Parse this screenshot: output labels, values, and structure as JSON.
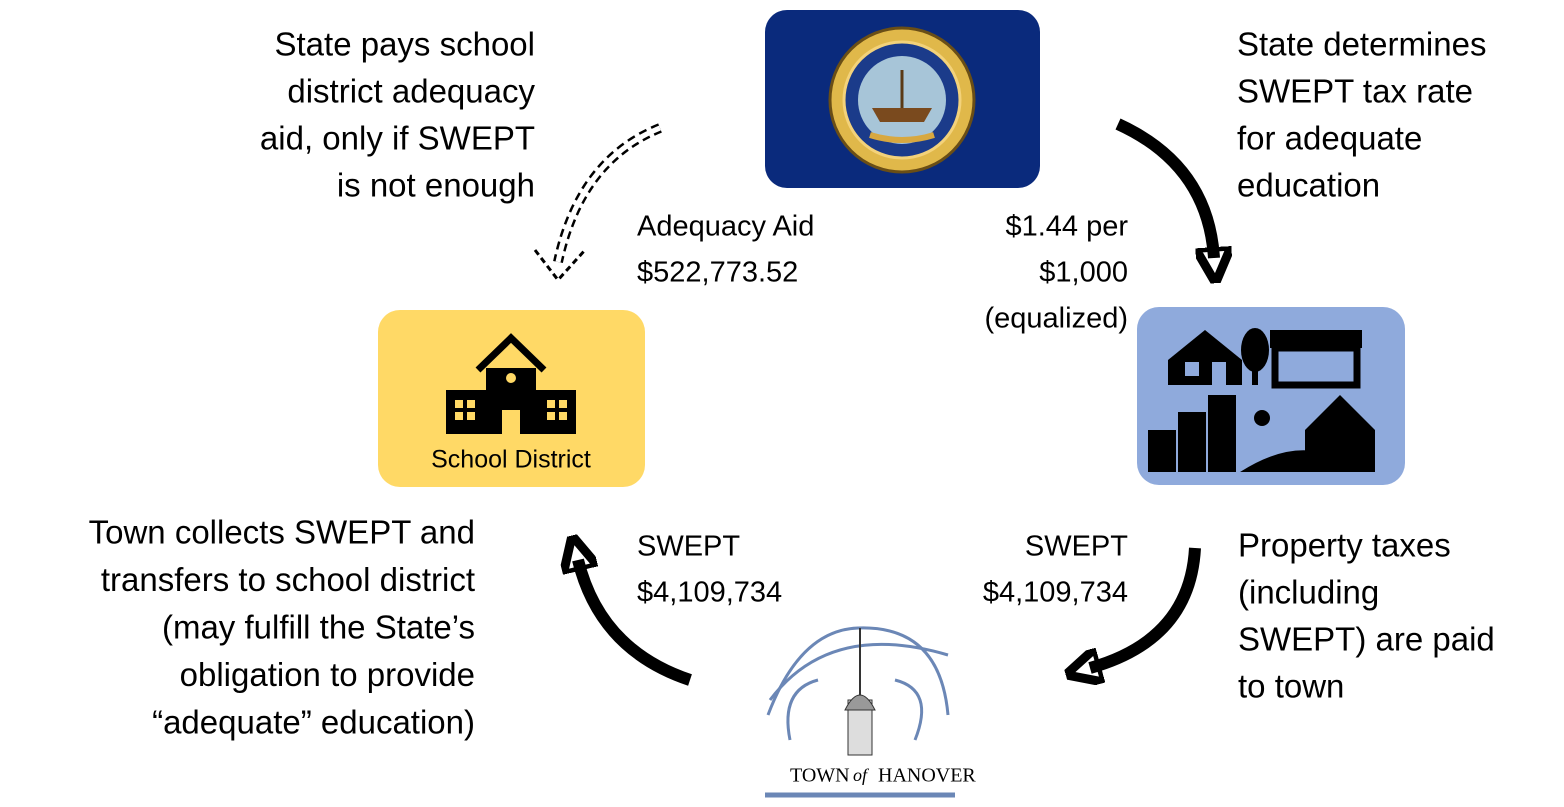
{
  "state": {
    "note": [
      "State determines",
      "SWEPT tax rate",
      "for adequate",
      "education"
    ]
  },
  "school_district": {
    "label": "School District",
    "note": [
      "State pays school",
      "district adequacy",
      "aid, only if SWEPT",
      "is not enough"
    ]
  },
  "town": {
    "logo": [
      "TOWN",
      "of",
      "HANOVER"
    ],
    "note": [
      "Town collects SWEPT and",
      "transfers to school district",
      "(may fulfill the State’s",
      "obligation to provide",
      "“adequate” education)"
    ]
  },
  "property": {
    "note": [
      "Property taxes",
      "(including",
      "SWEPT) are paid",
      "to town"
    ]
  },
  "flows": {
    "adequacy_aid": [
      "Adequacy Aid",
      "$522,773.52"
    ],
    "tax_rate": [
      "$1.44 per",
      "$1,000",
      "(equalized)"
    ],
    "town_to_school": [
      "SWEPT",
      "$4,109,734"
    ],
    "property_to_town": [
      "SWEPT",
      "$4,109,734"
    ]
  }
}
